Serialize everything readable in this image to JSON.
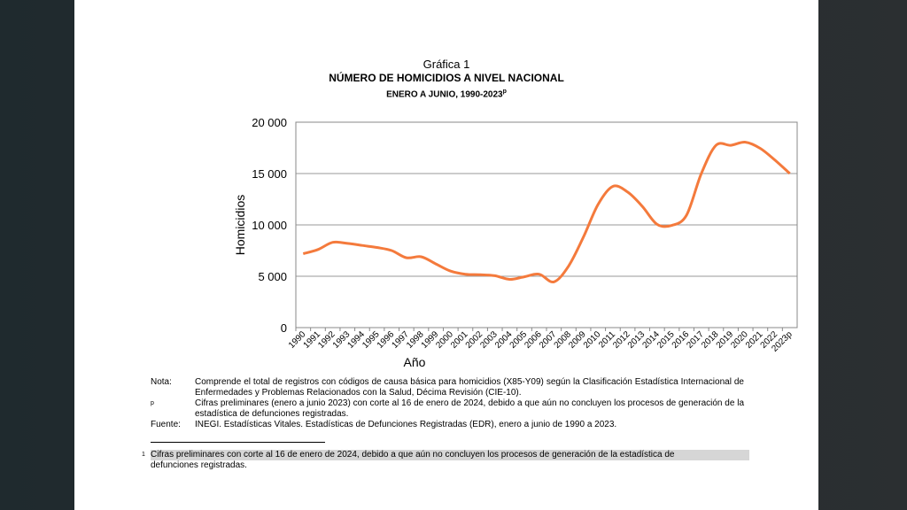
{
  "chart_data": {
    "type": "line",
    "label": "Gráfica 1",
    "title": "Número de Homicidios a nivel nacional",
    "subtitle": "enero a junio, 1990-2023",
    "subtitle_sup": "p",
    "xlabel": "Año",
    "ylabel": "Homicidios",
    "ylim": [
      0,
      20000
    ],
    "yticks": [
      0,
      5000,
      10000,
      15000,
      20000
    ],
    "ytick_labels": [
      "0",
      "5 000",
      "10 000",
      "15 000",
      "20 000"
    ],
    "grid": true,
    "legend": "none",
    "line_color": "#f47a3c",
    "x": [
      "1990",
      "1991",
      "1992",
      "1993",
      "1994",
      "1995",
      "1996",
      "1997",
      "1998",
      "1999",
      "2000",
      "2001",
      "2002",
      "2003",
      "2004",
      "2005",
      "2006",
      "2007",
      "2008",
      "2009",
      "2010",
      "2011",
      "2012",
      "2013",
      "2014",
      "2015",
      "2016",
      "2017",
      "2018",
      "2019",
      "2020",
      "2021",
      "2022",
      "2023p"
    ],
    "values": [
      7200,
      7600,
      8300,
      8200,
      8000,
      7800,
      7500,
      6800,
      6900,
      6200,
      5500,
      5200,
      5150,
      5050,
      4700,
      4950,
      5200,
      4450,
      6000,
      8800,
      12000,
      13750,
      13200,
      11800,
      10050,
      9950,
      10950,
      15000,
      17750,
      17750,
      18050,
      17450,
      16300,
      15000
    ]
  },
  "notes": {
    "nota_label": "Nota:",
    "nota_text": "Comprende el total de registros con códigos de causa básica para homicidios (X85-Y09) según la Clasificación Estadística Internacional de Enfermedades y Problemas Relacionados con la Salud, Décima Revisión (CIE-10).",
    "p_label": "p",
    "p_text": "Cifras preliminares (enero a junio 2023) con corte al 16 de enero de 2024, debido a que aún no concluyen los procesos de generación de la estadística de defunciones registradas.",
    "fuente_label": "Fuente:",
    "fuente_text": "INEGI. Estadísticas Vitales. Estadísticas de Defunciones Registradas (EDR), enero a junio de 1990 a 2023."
  },
  "footnote": {
    "mark": "1",
    "line1": "Cifras preliminares con corte al 16 de enero de 2024, debido a que aún no concluyen los procesos de generación de la estadística de",
    "line2": "defunciones registradas."
  }
}
